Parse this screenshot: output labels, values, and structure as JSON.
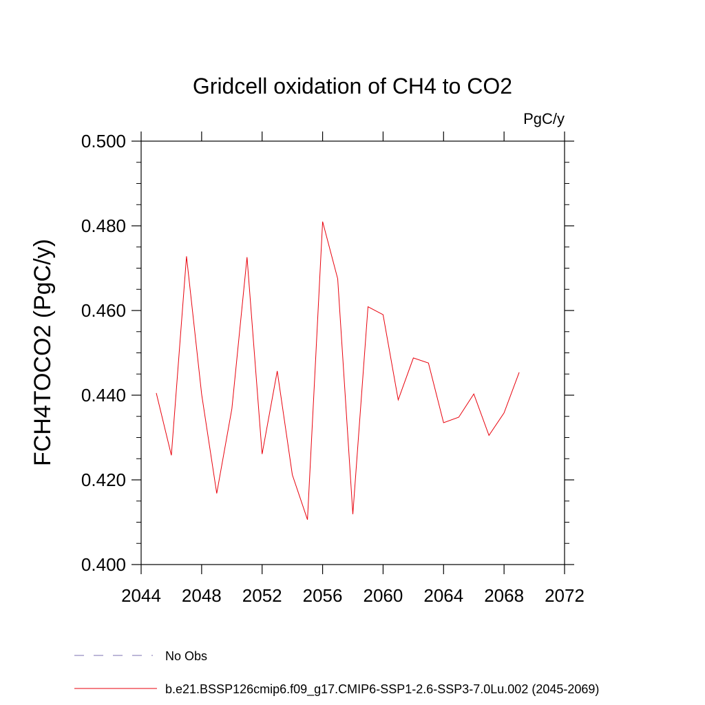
{
  "chart_data": {
    "type": "line",
    "title": "Gridcell oxidation of CH4 to CO2",
    "units": "PgC/y",
    "ylabel": "FCH4TOCO2  (PgC/y)",
    "xlabel": "",
    "xlim": [
      2044,
      2072
    ],
    "ylim": [
      0.4,
      0.5
    ],
    "x_ticks": [
      "2044",
      "2048",
      "2052",
      "2056",
      "2060",
      "2064",
      "2068",
      "2072"
    ],
    "y_ticks": [
      "0.400",
      "0.420",
      "0.440",
      "0.460",
      "0.480",
      "0.500"
    ],
    "grid": false,
    "legend_placement": "bottom",
    "series": [
      {
        "name": "b.e21.BSSP126cmip6.f09_g17.CMIP6-SSP1-2.6-SSP3-7.0Lu.002 (2045-2069)",
        "color": "#e8000b",
        "x": [
          2045,
          2046,
          2047,
          2048,
          2049,
          2050,
          2051,
          2052,
          2053,
          2054,
          2055,
          2056,
          2057,
          2058,
          2059,
          2060,
          2061,
          2062,
          2063,
          2064,
          2065,
          2066,
          2067,
          2068,
          2069
        ],
        "values": [
          0.4405,
          0.4258,
          0.4728,
          0.4402,
          0.4168,
          0.4368,
          0.4726,
          0.4261,
          0.4457,
          0.4212,
          0.4106,
          0.481,
          0.4675,
          0.4119,
          0.4609,
          0.459,
          0.4389,
          0.4488,
          0.4476,
          0.4335,
          0.4348,
          0.4403,
          0.4305,
          0.4358,
          0.4454
        ]
      }
    ],
    "legend": [
      {
        "label": "No Obs",
        "style": "dashed",
        "color": "#7b6fb0"
      },
      {
        "label": "b.e21.BSSP126cmip6.f09_g17.CMIP6-SSP1-2.6-SSP3-7.0Lu.002 (2045-2069)",
        "style": "solid",
        "color": "#e8000b"
      }
    ]
  }
}
